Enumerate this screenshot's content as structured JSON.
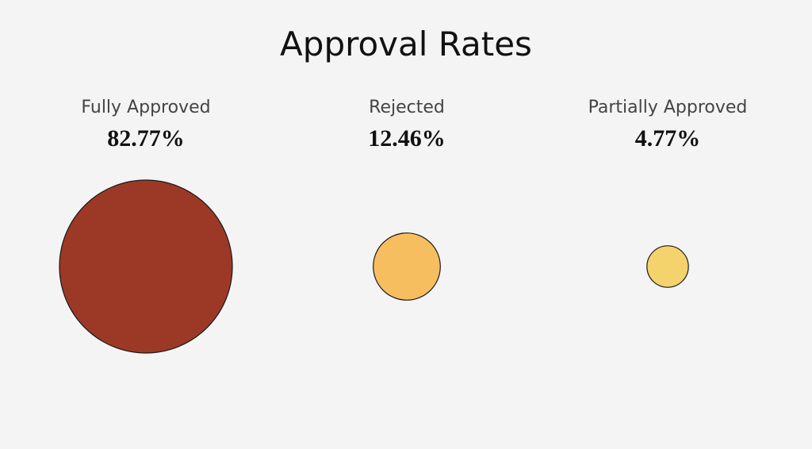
{
  "chart_data": {
    "type": "bubble",
    "title": "Approval Rates",
    "categories": [
      "Fully Approved",
      "Rejected",
      "Partially Approved"
    ],
    "values": [
      82.77,
      12.46,
      4.77
    ],
    "value_labels": [
      "82.77%",
      "12.46%",
      "4.77%"
    ],
    "colors": [
      "#9c3926",
      "#f7be60",
      "#f4d26c"
    ],
    "legend": "none",
    "grid": false
  }
}
